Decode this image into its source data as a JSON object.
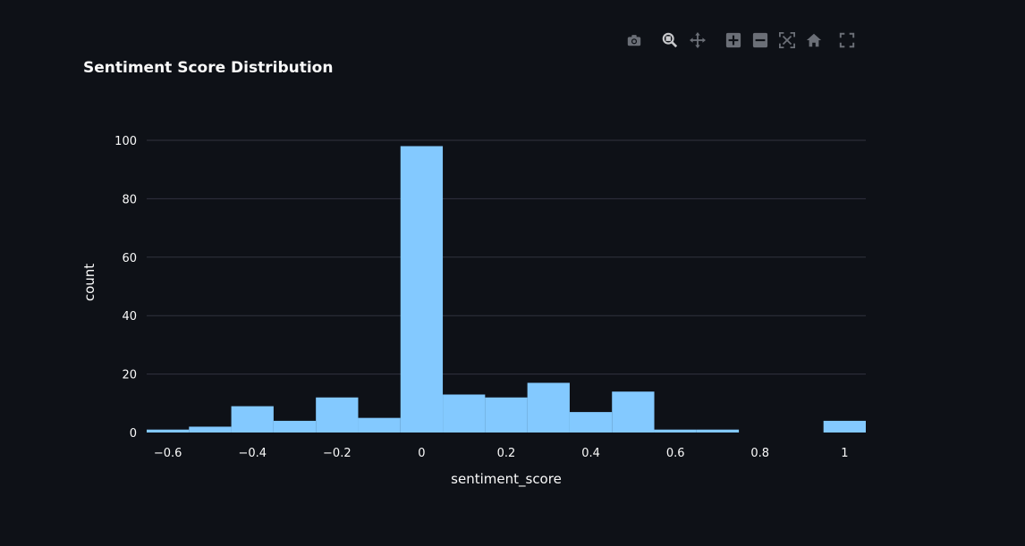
{
  "theme": {
    "background": "#0e1117",
    "bar_color": "#83c9ff",
    "grid_color": "#31333f",
    "text_color": "#fafafa",
    "icon_color": "#6b6f77"
  },
  "modebar": {
    "buttons": [
      "camera-icon",
      "zoom-icon",
      "pan-icon",
      "zoom-in-icon",
      "zoom-out-icon",
      "autoscale-icon",
      "reset-axes-icon",
      "fullscreen-icon"
    ]
  },
  "chart_data": {
    "type": "bar",
    "title": "Sentiment Score Distribution",
    "xlabel": "sentiment_score",
    "ylabel": "count",
    "xlim": [
      -0.65,
      1.05
    ],
    "ylim": [
      0,
      100
    ],
    "x_ticks": [
      -0.6,
      -0.4,
      -0.2,
      0,
      0.2,
      0.4,
      0.6,
      0.8,
      1
    ],
    "x_tick_labels": [
      "−0.6",
      "−0.4",
      "−0.2",
      "0",
      "0.2",
      "0.4",
      "0.6",
      "0.8",
      "1"
    ],
    "y_ticks": [
      0,
      20,
      40,
      60,
      80,
      100
    ],
    "y_tick_labels": [
      "0",
      "20",
      "40",
      "60",
      "80",
      "100"
    ],
    "bin_width": 0.1,
    "bin_starts": [
      -0.65,
      -0.55,
      -0.45,
      -0.35,
      -0.25,
      -0.15,
      -0.05,
      0.05,
      0.15,
      0.25,
      0.35,
      0.45,
      0.55,
      0.65,
      0.75,
      0.85,
      0.95
    ],
    "values": [
      1,
      2,
      9,
      4,
      12,
      5,
      98,
      13,
      12,
      17,
      7,
      14,
      1,
      1,
      0,
      0,
      4
    ],
    "grid": true
  }
}
